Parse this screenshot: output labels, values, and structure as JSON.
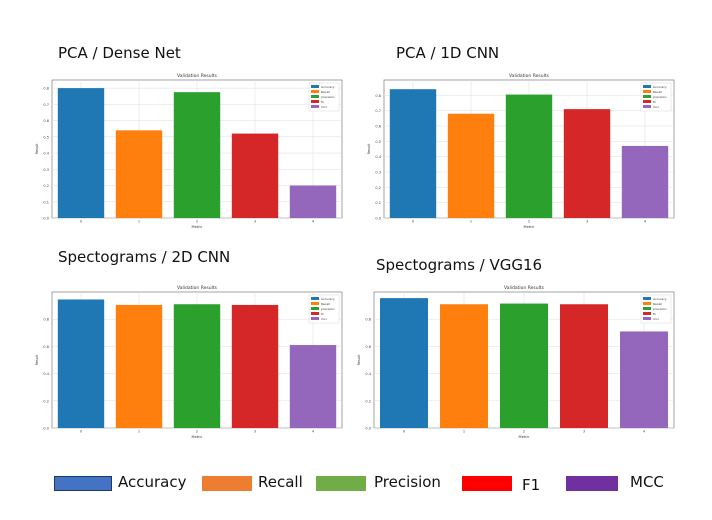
{
  "legend": {
    "items": [
      {
        "label": "Accuracy",
        "color": "#4472c4",
        "border": "#1f3864"
      },
      {
        "label": "Recall",
        "color": "#ed7d31",
        "border": "#ed7d31"
      },
      {
        "label": "Precision",
        "color": "#70ad47",
        "border": "#70ad47"
      },
      {
        "label": "F1",
        "color": "#ff0000",
        "border": "#ff0000"
      },
      {
        "label": "MCC",
        "color": "#7030a0",
        "border": "#7030a0"
      }
    ]
  },
  "panels": [
    {
      "title": "PCA / Dense Net"
    },
    {
      "title": "PCA / 1D CNN"
    },
    {
      "title": "Spectograms / 2D CNN"
    },
    {
      "title": "Spectograms / VGG16"
    }
  ],
  "chart_data": [
    {
      "type": "bar",
      "title": "Validation Results",
      "xlabel": "Metric",
      "ylabel": "Result",
      "categories": [
        "0",
        "1",
        "2",
        "3",
        "4"
      ],
      "values": [
        0.8,
        0.54,
        0.775,
        0.52,
        0.2
      ],
      "colors": [
        "#1f77b4",
        "#ff7f0e",
        "#2ca02c",
        "#d62728",
        "#9467bd"
      ],
      "legend": [
        "Accuracy",
        "Recall",
        "precision",
        "f1",
        "mcc"
      ],
      "legend_position": "top-right",
      "yticks": [
        "0.0",
        "0.1",
        "0.2",
        "0.3",
        "0.4",
        "0.5",
        "0.6",
        "0.7",
        "0.8"
      ],
      "ylim": [
        0,
        0.85
      ],
      "grid": true
    },
    {
      "type": "bar",
      "title": "Validation Results",
      "xlabel": "Metric",
      "ylabel": "Result",
      "categories": [
        "0",
        "1",
        "2",
        "3",
        "4"
      ],
      "values": [
        0.84,
        0.68,
        0.805,
        0.71,
        0.47
      ],
      "colors": [
        "#1f77b4",
        "#ff7f0e",
        "#2ca02c",
        "#d62728",
        "#9467bd"
      ],
      "legend": [
        "Accuracy",
        "Recall",
        "precision",
        "f1",
        "mcc"
      ],
      "legend_position": "top-right",
      "yticks": [
        "0.0",
        "0.1",
        "0.2",
        "0.3",
        "0.4",
        "0.5",
        "0.6",
        "0.7",
        "0.8"
      ],
      "ylim": [
        0,
        0.9
      ],
      "grid": true
    },
    {
      "type": "bar",
      "title": "Validation Results",
      "xlabel": "Metric",
      "ylabel": "Result",
      "categories": [
        "0",
        "1",
        "2",
        "3",
        "4"
      ],
      "values": [
        0.945,
        0.905,
        0.91,
        0.905,
        0.61
      ],
      "colors": [
        "#1f77b4",
        "#ff7f0e",
        "#2ca02c",
        "#d62728",
        "#9467bd"
      ],
      "legend": [
        "Accuracy",
        "Recall",
        "precision",
        "f1",
        "mcc"
      ],
      "legend_position": "top-right",
      "yticks": [
        "0.0",
        "0.2",
        "0.4",
        "0.6",
        "0.8"
      ],
      "ylim": [
        0,
        1.0
      ],
      "grid": true
    },
    {
      "type": "bar",
      "title": "Validation Results",
      "xlabel": "Metric",
      "ylabel": "Result",
      "categories": [
        "0",
        "1",
        "2",
        "3",
        "4"
      ],
      "values": [
        0.955,
        0.91,
        0.915,
        0.91,
        0.71
      ],
      "colors": [
        "#1f77b4",
        "#ff7f0e",
        "#2ca02c",
        "#d62728",
        "#9467bd"
      ],
      "legend": [
        "Accuracy",
        "Recall",
        "precision",
        "f1",
        "mcc"
      ],
      "legend_position": "top-right",
      "yticks": [
        "0.0",
        "0.2",
        "0.4",
        "0.6",
        "0.8"
      ],
      "ylim": [
        0,
        1.0
      ],
      "grid": true
    }
  ]
}
